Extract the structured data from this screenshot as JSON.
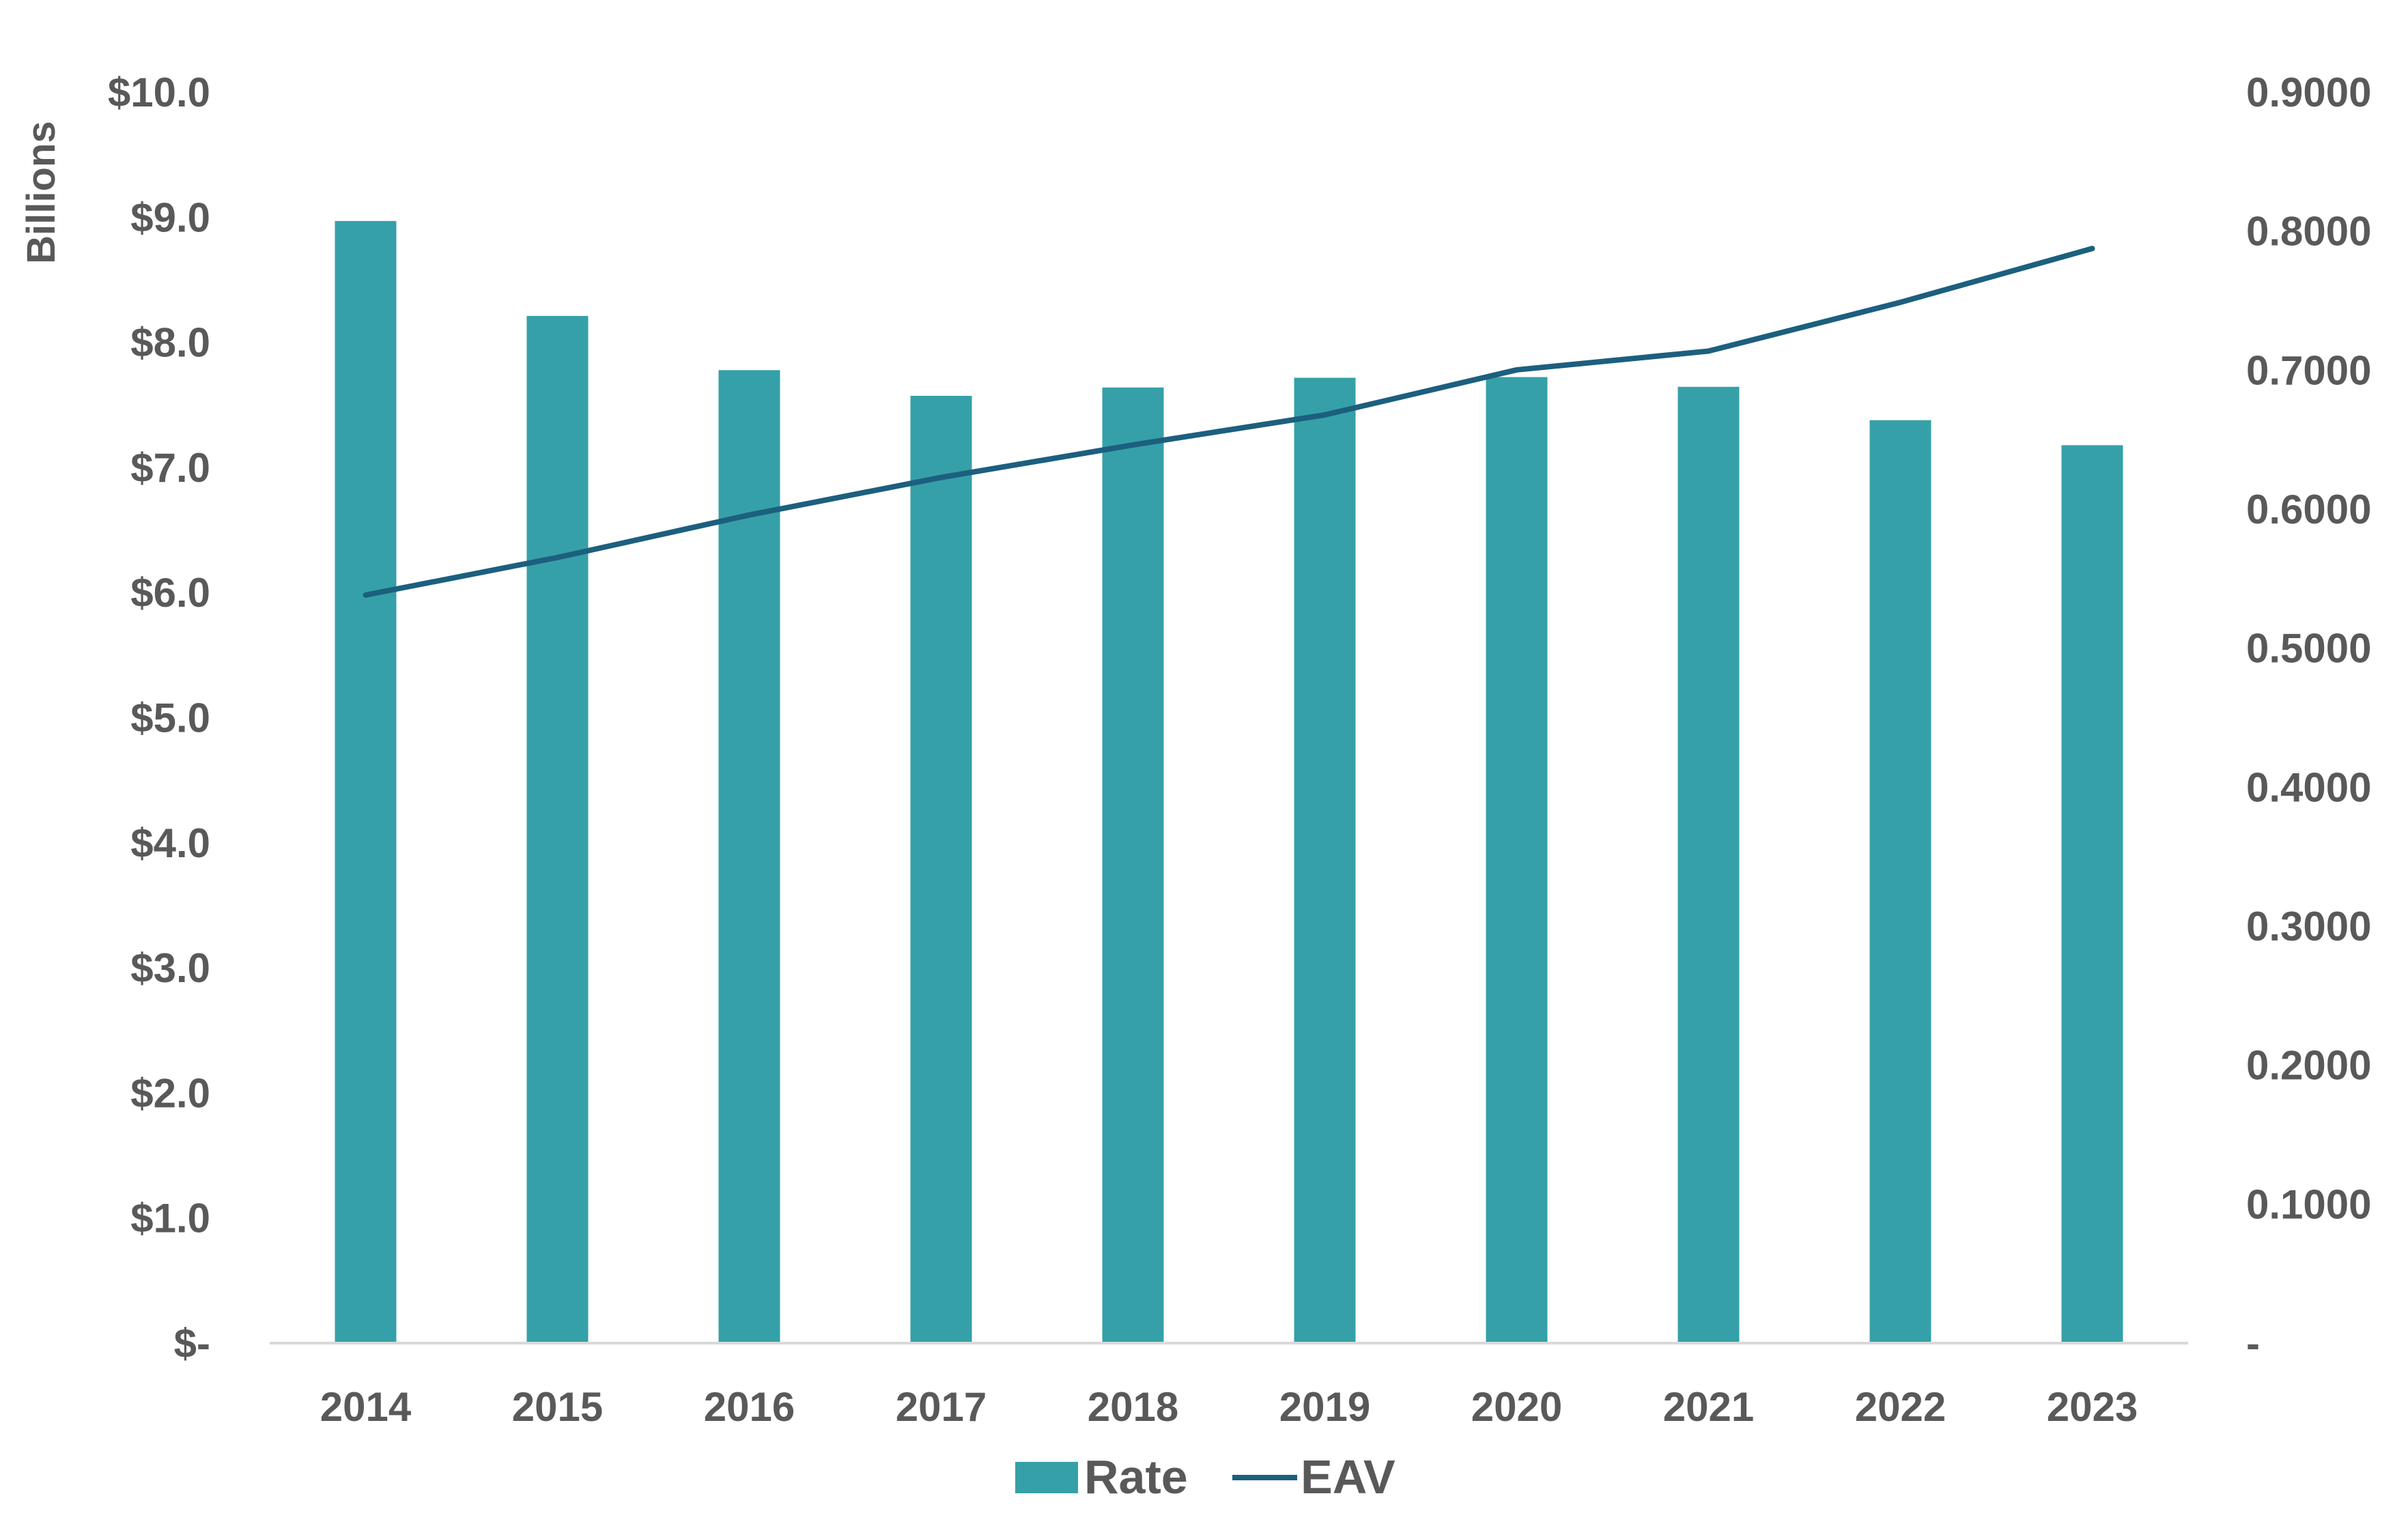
{
  "chart_data": {
    "type": "bar",
    "categories": [
      "2014",
      "2015",
      "2016",
      "2017",
      "2018",
      "2019",
      "2020",
      "2021",
      "2022",
      "2023"
    ],
    "series": [
      {
        "name": "Rate",
        "type": "bar",
        "axis": "right",
        "color": "#35A0A8",
        "values": [
          0.8073,
          0.739,
          0.7,
          0.6815,
          0.6875,
          0.6945,
          0.695,
          0.688,
          0.664,
          0.646
        ]
      },
      {
        "name": "EAV",
        "type": "line",
        "axis": "left",
        "color": "#1C5F7E",
        "values": [
          5.98,
          6.28,
          6.62,
          6.92,
          7.18,
          7.42,
          7.78,
          7.93,
          8.32,
          8.75
        ]
      }
    ],
    "left_axis": {
      "label": "Billions",
      "min": 0,
      "max": 10,
      "ticks": [
        "$-",
        "$1.0",
        "$2.0",
        "$3.0",
        "$4.0",
        "$5.0",
        "$6.0",
        "$7.0",
        "$8.0",
        "$9.0",
        "$10.0"
      ]
    },
    "right_axis": {
      "min": 0,
      "max": 0.9,
      "ticks": [
        "-",
        "0.1000",
        "0.2000",
        "0.3000",
        "0.4000",
        "0.5000",
        "0.6000",
        "0.7000",
        "0.8000",
        "0.9000"
      ]
    },
    "grid": false,
    "legend": {
      "position": "bottom",
      "entries": [
        "Rate",
        "EAV"
      ]
    }
  }
}
